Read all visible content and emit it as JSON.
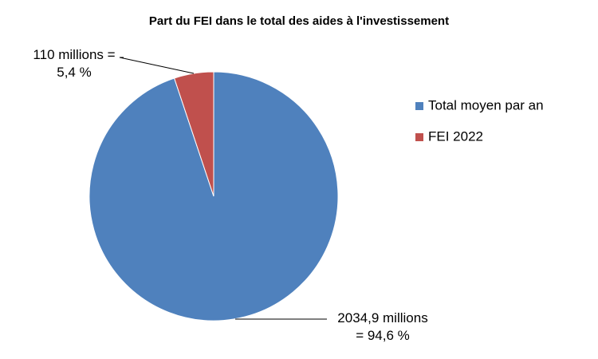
{
  "chart_data": {
    "type": "pie",
    "title": "Part du FEI dans le total des aides à l'investissement",
    "categories": [
      "Total moyen par an",
      "FEI 2022"
    ],
    "values": [
      2034.9,
      110
    ],
    "value_labels": [
      "2034,9 millions\n= 94,6 %",
      "110 millions =\n5,4 %"
    ],
    "colors": [
      "#4f81bd",
      "#c0504d"
    ],
    "legend": "right"
  }
}
